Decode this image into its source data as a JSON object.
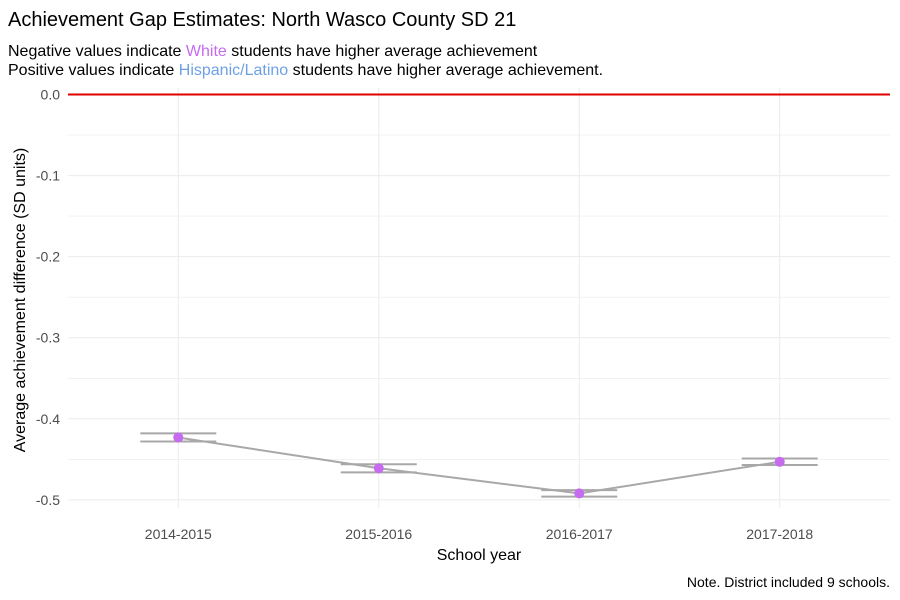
{
  "chart_data": {
    "type": "line",
    "title": "Achievement Gap Estimates: North Wasco County SD 21",
    "subtitle": {
      "line1": {
        "before": "Negative values indicate ",
        "highlight": "White",
        "after": " students have higher average achievement"
      },
      "line2": {
        "before": "Positive values indicate ",
        "highlight": "Hispanic/Latino",
        "after": " students have higher average achievement."
      }
    },
    "xlabel": "School year",
    "ylabel": "Average achievement difference (SD units)",
    "caption": "Note. District included 9 schools.",
    "categories": [
      "2014-2015",
      "2015-2016",
      "2016-2017",
      "2017-2018"
    ],
    "series": [
      {
        "values": [
          -0.423,
          -0.461,
          -0.492,
          -0.453
        ],
        "ci_low": [
          -0.428,
          -0.466,
          -0.496,
          -0.457
        ],
        "ci_high": [
          -0.418,
          -0.456,
          -0.488,
          -0.449
        ]
      }
    ],
    "reference_line": {
      "y": 0.0,
      "color": "#e00000"
    },
    "ylim": [
      -0.51,
      0.008
    ],
    "yticks": [
      0.0,
      -0.1,
      -0.2,
      -0.3,
      -0.4,
      -0.5
    ],
    "ytick_labels": [
      "0.0",
      "-0.1",
      "-0.2",
      "-0.3",
      "-0.4",
      "-0.5"
    ],
    "grid": true,
    "colors": {
      "white_group": "#c66bef",
      "hispanic_group": "#6ea0e6",
      "points": "#c66bef",
      "line": "#a8a8a8",
      "error_bars": "#a8a8a8",
      "grid": "#ebebeb"
    }
  }
}
